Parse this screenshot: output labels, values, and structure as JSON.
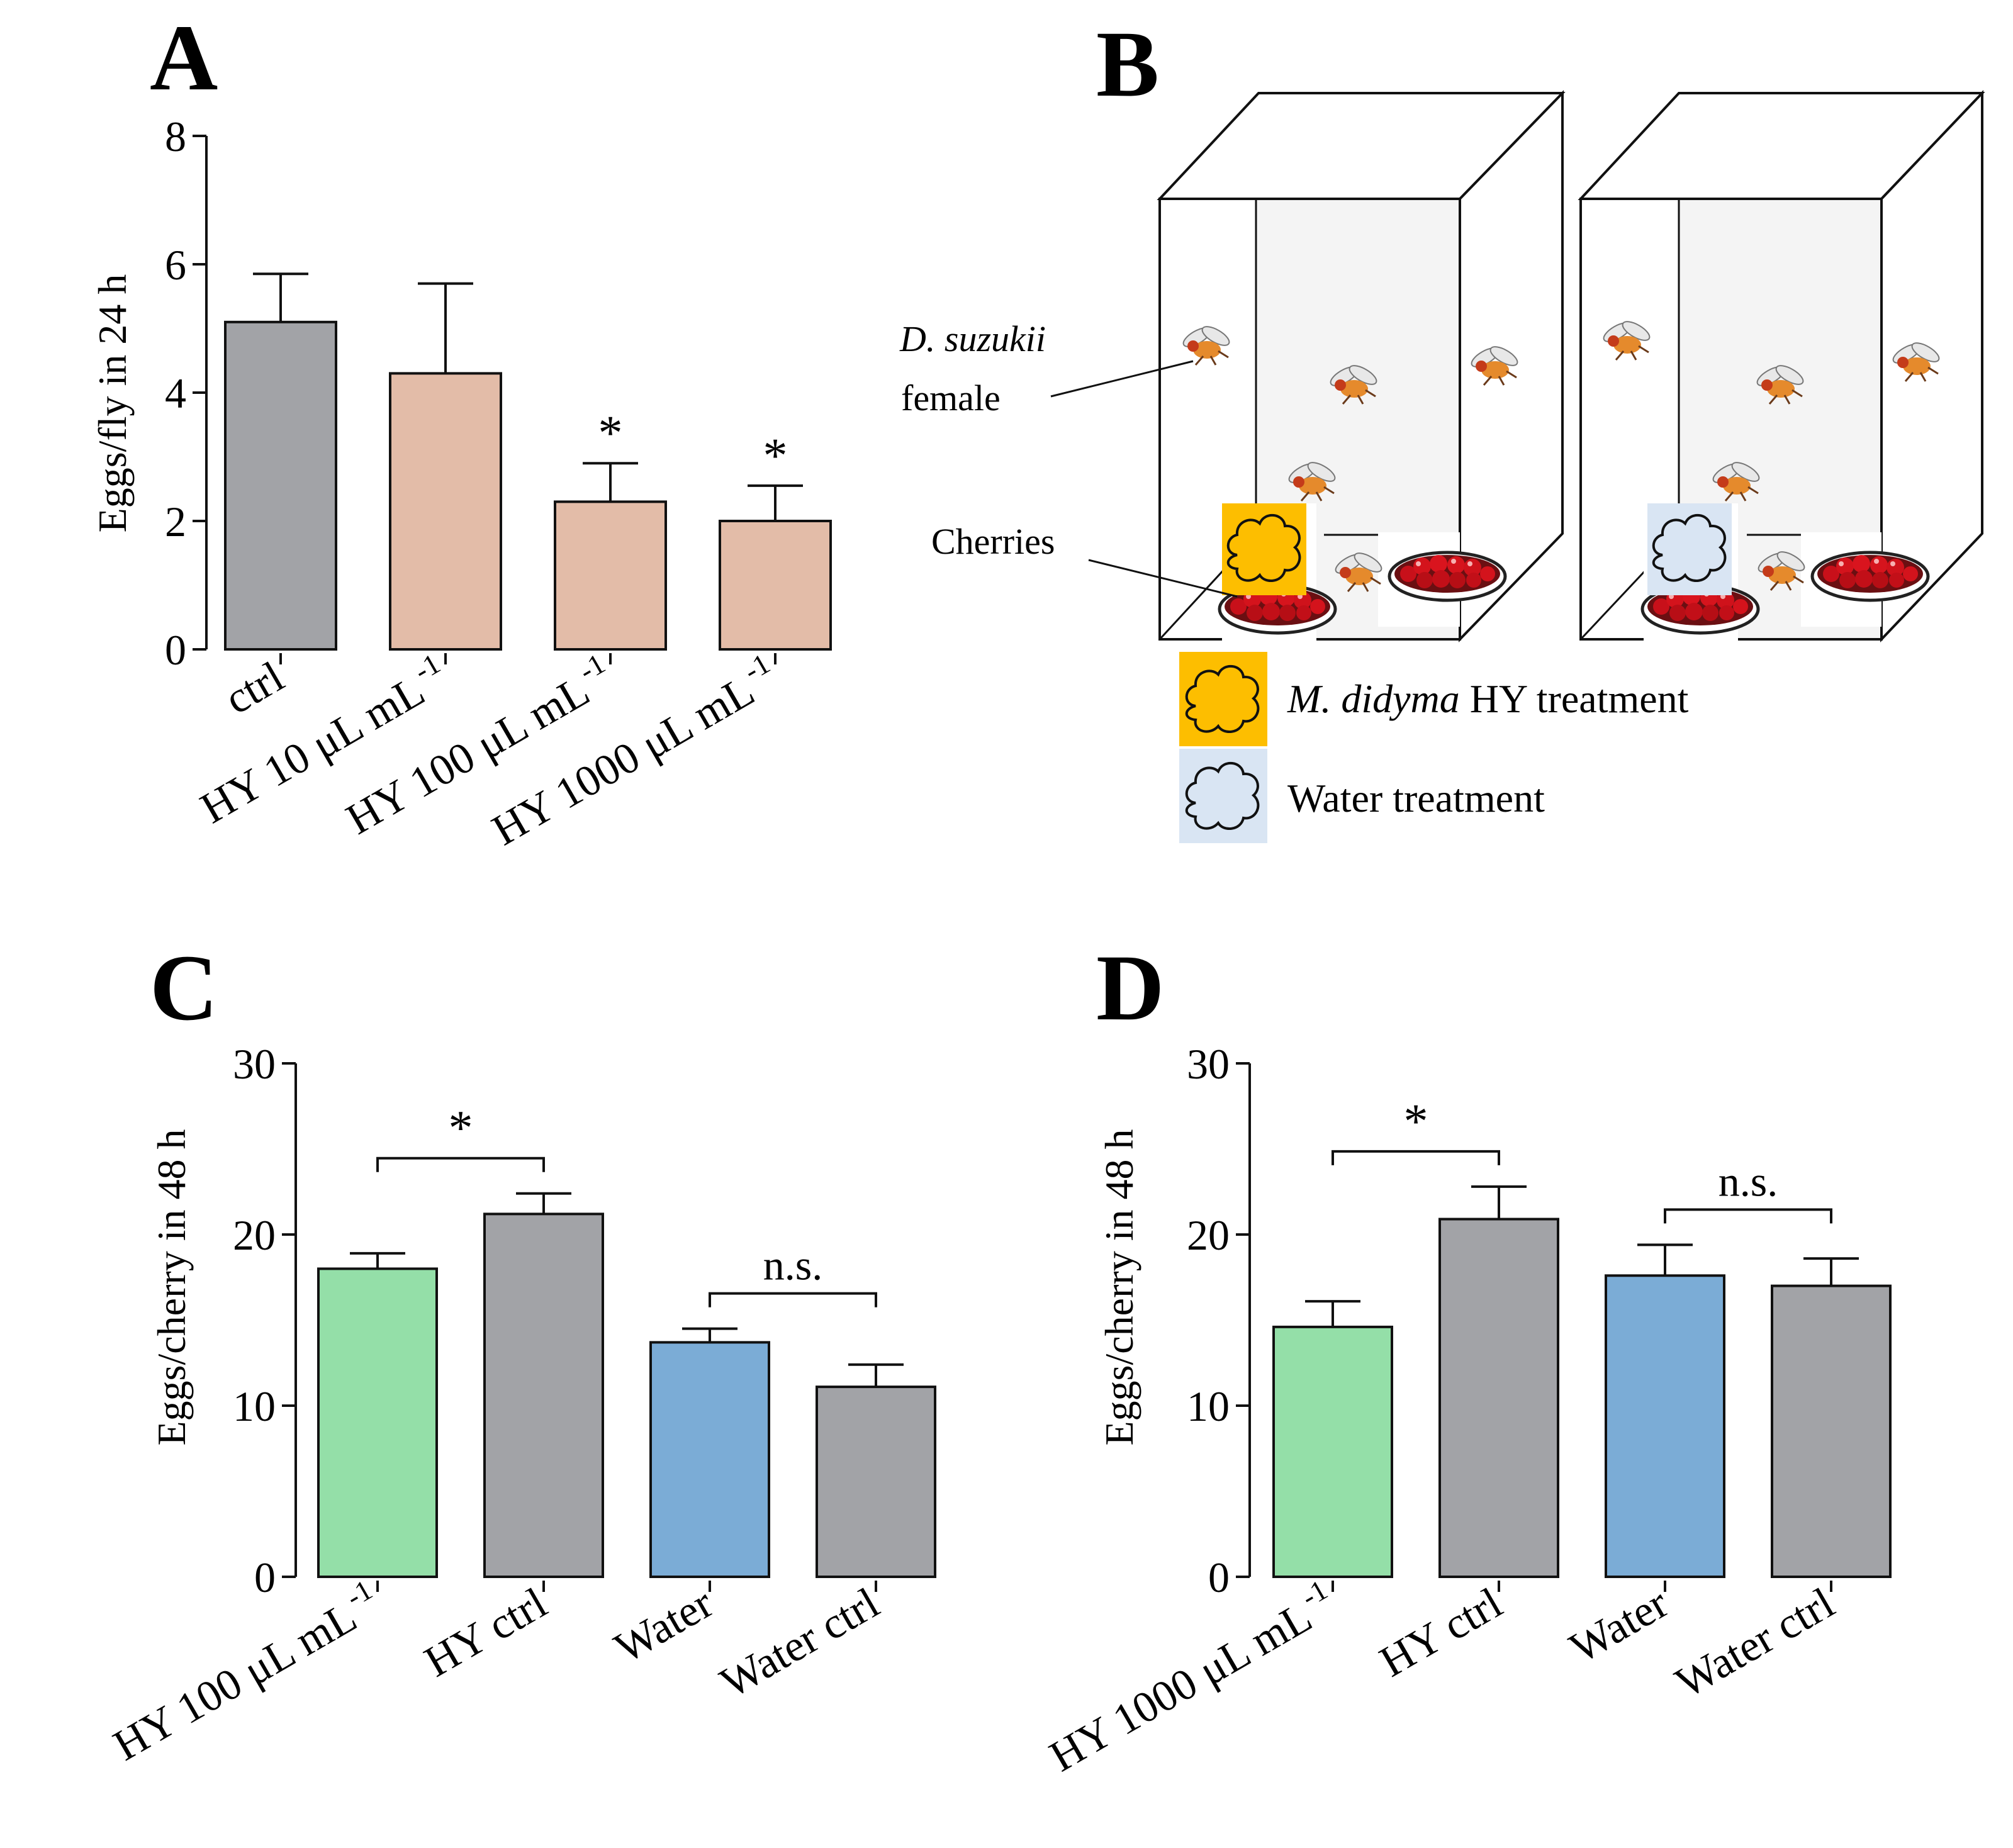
{
  "panels": {
    "A": "A",
    "B": "B",
    "C": "C",
    "D": "D"
  },
  "colors": {
    "ctrl_gray": "#A2A3A7",
    "hy_peach": "#E3BCA8",
    "green": "#94DFA8",
    "blue": "#7BACD6",
    "yellow": "#FDBE00",
    "lightblue": "#D9E5F3"
  },
  "chart_data": [
    {
      "id": "A",
      "type": "bar",
      "categories": [
        "ctrl",
        "HY 10 μL mL",
        "HY 100 μL mL",
        "HY 1000 μL mL"
      ],
      "category_superscripts": [
        "",
        "-1",
        "-1",
        "-1"
      ],
      "values": [
        5.1,
        4.3,
        2.3,
        2.0
      ],
      "errors": [
        0.75,
        1.4,
        0.6,
        0.55
      ],
      "significance": [
        "",
        "",
        "*",
        "*"
      ],
      "ylabel": "Eggs/fly in 24 h",
      "ylim": [
        0,
        8
      ],
      "yticks": [
        "0",
        "2",
        "4",
        "6",
        "8"
      ]
    },
    {
      "id": "C",
      "type": "bar",
      "categories": [
        "HY 100 μL mL",
        "HY ctrl",
        "Water",
        "Water ctrl"
      ],
      "category_superscripts": [
        "-1",
        "",
        "",
        ""
      ],
      "values": [
        18.0,
        21.2,
        13.7,
        11.1
      ],
      "errors": [
        0.9,
        1.2,
        0.8,
        1.3
      ],
      "brackets": [
        {
          "from": 0,
          "to": 1,
          "label": "*"
        },
        {
          "from": 2,
          "to": 3,
          "label": "n.s."
        }
      ],
      "ylabel": "Eggs/cherry in 48 h",
      "ylim": [
        0,
        30
      ],
      "yticks": [
        "0",
        "10",
        "20",
        "30"
      ]
    },
    {
      "id": "D",
      "type": "bar",
      "categories": [
        "HY 1000 μL mL",
        "HY ctrl",
        "Water",
        "Water ctrl"
      ],
      "category_superscripts": [
        "-1",
        "",
        "",
        ""
      ],
      "values": [
        14.6,
        20.9,
        17.6,
        17.0
      ],
      "errors": [
        1.5,
        1.9,
        1.8,
        1.6
      ],
      "brackets": [
        {
          "from": 0,
          "to": 1,
          "label": "*"
        },
        {
          "from": 2,
          "to": 3,
          "label": "n.s."
        }
      ],
      "ylabel": "Eggs/cherry in 48 h",
      "ylim": [
        0,
        30
      ],
      "yticks": [
        "0",
        "10",
        "20",
        "30"
      ]
    }
  ],
  "diagram": {
    "fly_label_italic": "D. suzukii",
    "fly_label_rest": "female",
    "cherries_label": "Cherries",
    "legend_hy_italic": "M. didyma",
    "legend_hy_rest": " HY treatment",
    "legend_water": "Water treatment"
  }
}
